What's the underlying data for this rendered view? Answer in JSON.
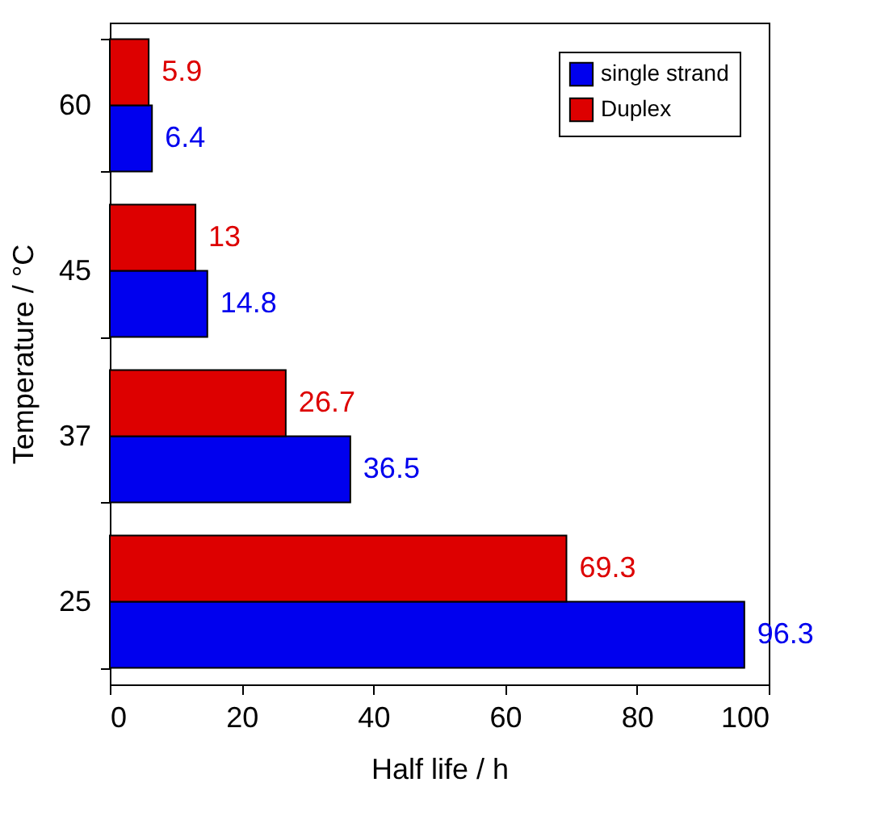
{
  "chart_data": {
    "type": "bar",
    "orientation": "horizontal",
    "xlabel": "Half life / h",
    "ylabel": "Temperature / °C",
    "categories": [
      "60",
      "45",
      "37",
      "25"
    ],
    "series": [
      {
        "name": "single strand",
        "color": "#0000ee",
        "values": [
          6.4,
          14.8,
          36.5,
          96.3
        ]
      },
      {
        "name": "Duplex",
        "color": "#dd0000",
        "values": [
          5.9,
          13,
          26.7,
          69.3
        ]
      }
    ],
    "xlim": [
      0,
      100
    ],
    "xticks": [
      0,
      20,
      40,
      60,
      80,
      100
    ],
    "grid": false,
    "legend": "top right",
    "data_labels": true
  }
}
